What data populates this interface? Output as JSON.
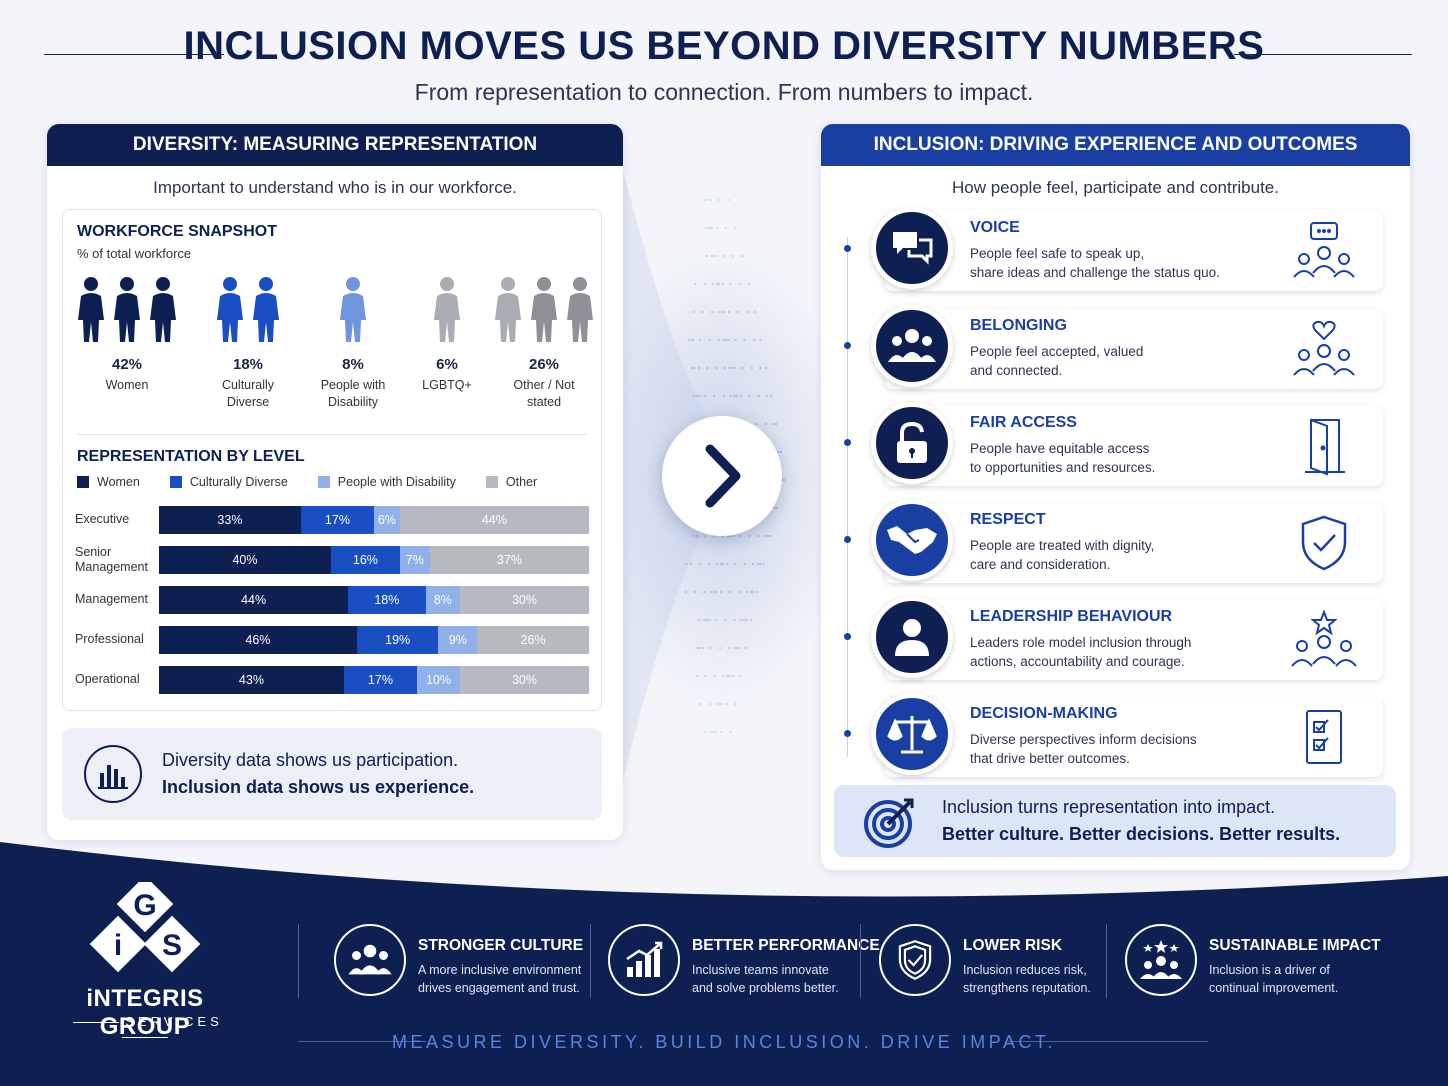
{
  "header": {
    "title": "INCLUSION MOVES US BEYOND DIVERSITY NUMBERS",
    "subtitle": "From representation to connection. From numbers to impact."
  },
  "left": {
    "heading": "DIVERSITY: MEASURING REPRESENTATION",
    "subheading": "Important to understand who is in our workforce.",
    "snapshot": {
      "title": "WORKFORCE SNAPSHOT",
      "subtitle": "% of total workforce",
      "groups": [
        {
          "pct": "42%",
          "label": "Women",
          "color": "#0e1f52",
          "figures": 3
        },
        {
          "pct": "18%",
          "label": "Culturally Diverse",
          "color": "#1a4fc4",
          "figures": 2
        },
        {
          "pct": "8%",
          "label": "People with Disability",
          "color": "#6f96dc",
          "figures": 1
        },
        {
          "pct": "6%",
          "label": "LGBTQ+",
          "color": "#a9acb3",
          "figures": 1
        },
        {
          "pct": "26%",
          "label": "Other / Not stated",
          "color": "#8f9196",
          "figures": 3
        }
      ]
    },
    "representation": {
      "title": "REPRESENTATION BY LEVEL",
      "legend": [
        {
          "name": "Women",
          "color": "#0e1f52"
        },
        {
          "name": "Culturally Diverse",
          "color": "#1a4fc4"
        },
        {
          "name": "People with Disability",
          "color": "#8fb0e8"
        },
        {
          "name": "Other",
          "color": "#b6b9c0"
        }
      ],
      "rows": [
        {
          "level": "Executive",
          "values": [
            33,
            17,
            6,
            44
          ]
        },
        {
          "level": "Senior Management",
          "values": [
            40,
            16,
            7,
            37
          ]
        },
        {
          "level": "Management",
          "values": [
            44,
            18,
            8,
            30
          ]
        },
        {
          "level": "Professional",
          "values": [
            46,
            19,
            9,
            26
          ]
        },
        {
          "level": "Operational",
          "values": [
            43,
            17,
            10,
            30
          ]
        }
      ]
    },
    "callout": {
      "line1": "Diversity data shows us participation.",
      "line2": "Inclusion data shows us experience."
    }
  },
  "right": {
    "heading": "INCLUSION: DRIVING EXPERIENCE AND OUTCOMES",
    "subheading": "How people feel, participate and contribute.",
    "cards": [
      {
        "title": "VOICE",
        "desc1": "People feel safe to speak up,",
        "desc2": "share ideas and challenge the status quo.",
        "icon": "speech-bubbles-icon",
        "side_icon": "group-discussion-icon"
      },
      {
        "title": "BELONGING",
        "desc1": "People feel accepted, valued",
        "desc2": "and connected.",
        "icon": "people-group-icon",
        "side_icon": "heart-group-icon"
      },
      {
        "title": "FAIR ACCESS",
        "desc1": "People have equitable access",
        "desc2": "to opportunities and resources.",
        "icon": "unlock-icon",
        "side_icon": "open-door-icon"
      },
      {
        "title": "RESPECT",
        "desc1": "People are treated with dignity,",
        "desc2": "care and consideration.",
        "icon": "handshake-icon",
        "side_icon": "shield-check-icon"
      },
      {
        "title": "LEADERSHIP BEHAVIOUR",
        "desc1": "Leaders role model inclusion through",
        "desc2": "actions, accountability and courage.",
        "icon": "person-icon",
        "side_icon": "star-team-icon"
      },
      {
        "title": "DECISION-MAKING",
        "desc1": "Diverse perspectives inform decisions",
        "desc2": "that drive better outcomes.",
        "icon": "scales-icon",
        "side_icon": "checklist-icon"
      }
    ],
    "callout": {
      "line1": "Inclusion turns representation into impact.",
      "line2": "Better culture. Better decisions. Better results."
    }
  },
  "footer": {
    "brand_name": "iNTEGRIS GROUP",
    "brand_sub": "SERVICES",
    "logo_letters": [
      "G",
      "i",
      "S"
    ],
    "benefits": [
      {
        "title": "STRONGER CULTURE",
        "desc1": "A more inclusive environment",
        "desc2": "drives engagement and trust.",
        "icon": "people-group-icon"
      },
      {
        "title": "BETTER PERFORMANCE",
        "desc1": "Inclusive teams innovate",
        "desc2": "and solve problems better.",
        "icon": "growth-chart-icon"
      },
      {
        "title": "LOWER RISK",
        "desc1": "Inclusion reduces risk,",
        "desc2": "strengthens reputation.",
        "icon": "shield-check-icon"
      },
      {
        "title": "SUSTAINABLE IMPACT",
        "desc1": "Inclusion is a driver of",
        "desc2": "continual improvement.",
        "icon": "star-team-icon"
      }
    ],
    "tagline": "MEASURE DIVERSITY. BUILD INCLUSION. DRIVE IMPACT."
  },
  "colors": {
    "navy": "#0e1f52",
    "blue": "#1a3fa3",
    "bright_blue": "#1a4fc4",
    "light_blue": "#8fb0e8",
    "grey": "#b6b9c0",
    "footer_bg": "#0e1f52"
  }
}
